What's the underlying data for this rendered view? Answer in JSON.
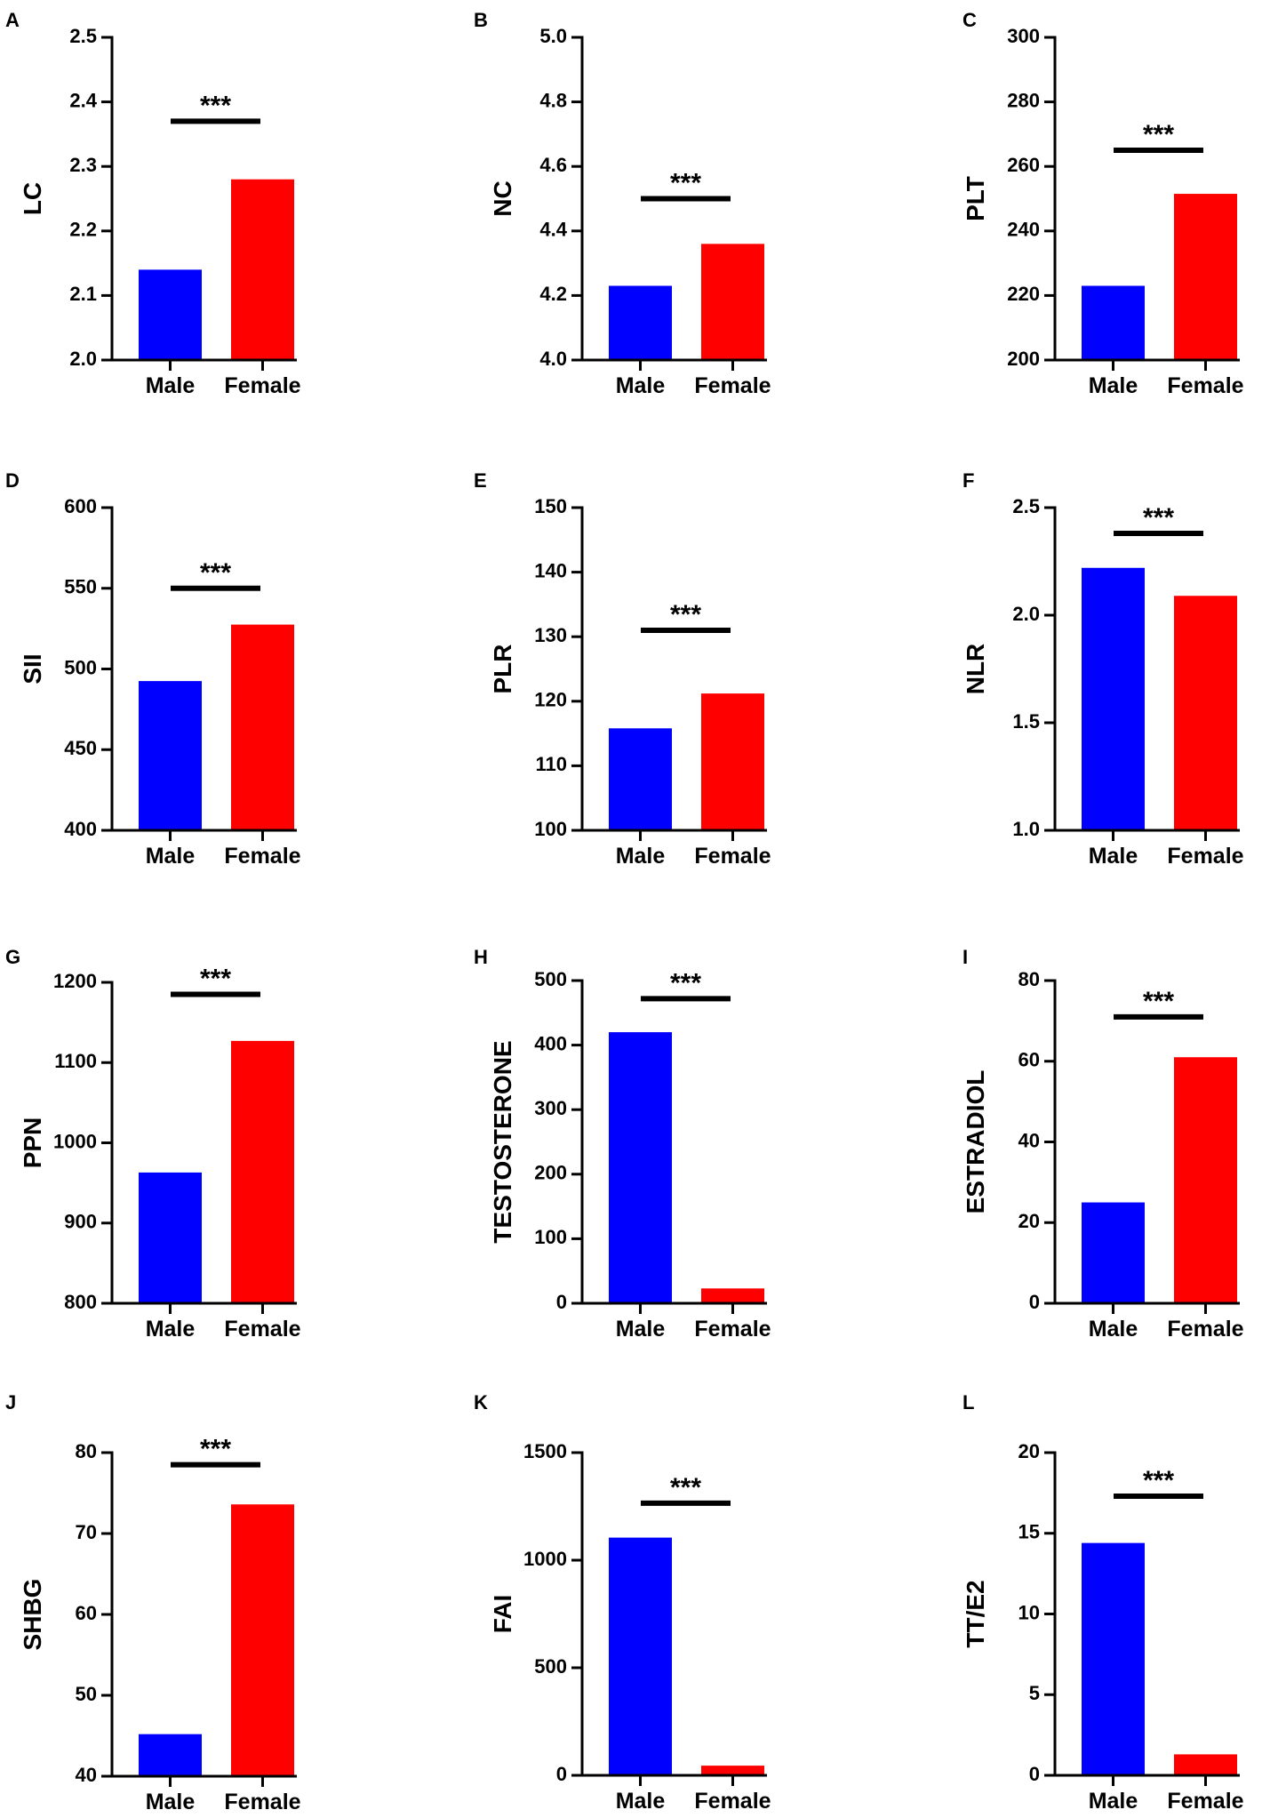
{
  "colors": {
    "male": "#0000FF",
    "female": "#FF0000",
    "axis": "#000000"
  },
  "chart_data": [
    {
      "panel": "A",
      "type": "bar",
      "ylabel": "LC",
      "categories": [
        "Male",
        "Female"
      ],
      "values": [
        2.14,
        2.28
      ],
      "ylim": [
        2.0,
        2.5
      ],
      "ticks": [
        "2.0",
        "2.1",
        "2.2",
        "2.3",
        "2.4",
        "2.5"
      ],
      "significance": "***",
      "sig_level": 2.37
    },
    {
      "panel": "B",
      "type": "bar",
      "ylabel": "NC",
      "categories": [
        "Male",
        "Female"
      ],
      "values": [
        4.23,
        4.36
      ],
      "ylim": [
        4.0,
        5.0
      ],
      "ticks": [
        "4.0",
        "4.2",
        "4.4",
        "4.6",
        "4.8",
        "5.0"
      ],
      "significance": "***",
      "sig_level": 4.5
    },
    {
      "panel": "C",
      "type": "bar",
      "ylabel": "PLT",
      "categories": [
        "Male",
        "Female"
      ],
      "values": [
        223,
        251.5
      ],
      "ylim": [
        200,
        300
      ],
      "ticks": [
        "200",
        "220",
        "240",
        "260",
        "280",
        "300"
      ],
      "significance": "***",
      "sig_level": 265
    },
    {
      "panel": "D",
      "type": "bar",
      "ylabel": "SII",
      "categories": [
        "Male",
        "Female"
      ],
      "values": [
        492.5,
        527.5
      ],
      "ylim": [
        400,
        600
      ],
      "ticks": [
        "400",
        "450",
        "500",
        "550",
        "600"
      ],
      "significance": "***",
      "sig_level": 550
    },
    {
      "panel": "E",
      "type": "bar",
      "ylabel": "PLR",
      "categories": [
        "Male",
        "Female"
      ],
      "values": [
        115.8,
        121.2
      ],
      "ylim": [
        100,
        150
      ],
      "ticks": [
        "100",
        "110",
        "120",
        "130",
        "140",
        "150"
      ],
      "significance": "***",
      "sig_level": 131
    },
    {
      "panel": "F",
      "type": "bar",
      "ylabel": "NLR",
      "categories": [
        "Male",
        "Female"
      ],
      "values": [
        2.22,
        2.09
      ],
      "ylim": [
        1.0,
        2.5
      ],
      "ticks": [
        "1.0",
        "1.5",
        "2.0",
        "2.5"
      ],
      "significance": "***",
      "sig_level": 2.38
    },
    {
      "panel": "G",
      "type": "bar",
      "ylabel": "PPN",
      "categories": [
        "Male",
        "Female"
      ],
      "values": [
        963,
        1127
      ],
      "ylim": [
        800,
        1200
      ],
      "ticks": [
        "800",
        "900",
        "1000",
        "1100",
        "1200"
      ],
      "significance": "***",
      "sig_level": 1185
    },
    {
      "panel": "H",
      "type": "bar",
      "ylabel": "TESTOSTERONE",
      "categories": [
        "Male",
        "Female"
      ],
      "values": [
        420,
        23
      ],
      "ylim": [
        0,
        500
      ],
      "ticks": [
        "0",
        "100",
        "200",
        "300",
        "400",
        "500"
      ],
      "significance": "***",
      "sig_level": 472
    },
    {
      "panel": "I",
      "type": "bar",
      "ylabel": "ESTRADIOL",
      "categories": [
        "Male",
        "Female"
      ],
      "values": [
        25,
        61
      ],
      "ylim": [
        0,
        80
      ],
      "ticks": [
        "0",
        "20",
        "40",
        "60",
        "80"
      ],
      "significance": "***",
      "sig_level": 71
    },
    {
      "panel": "J",
      "type": "bar",
      "ylabel": "SHBG",
      "categories": [
        "Male",
        "Female"
      ],
      "values": [
        45.2,
        73.6
      ],
      "ylim": [
        40,
        80
      ],
      "ticks": [
        "40",
        "50",
        "60",
        "70",
        "80"
      ],
      "significance": "***",
      "sig_level": 78.5
    },
    {
      "panel": "K",
      "type": "bar",
      "ylabel": "FAI",
      "categories": [
        "Male",
        "Female"
      ],
      "values": [
        1105,
        45
      ],
      "ylim": [
        0,
        1500
      ],
      "ticks": [
        "0",
        "500",
        "1000",
        "1500"
      ],
      "significance": "***",
      "sig_level": 1265
    },
    {
      "panel": "L",
      "type": "bar",
      "ylabel": "TT/E2",
      "categories": [
        "Male",
        "Female"
      ],
      "values": [
        14.4,
        1.3
      ],
      "ylim": [
        0,
        20
      ],
      "ticks": [
        "0",
        "5",
        "10",
        "15",
        "20"
      ],
      "significance": "***",
      "sig_level": 17.3
    }
  ]
}
